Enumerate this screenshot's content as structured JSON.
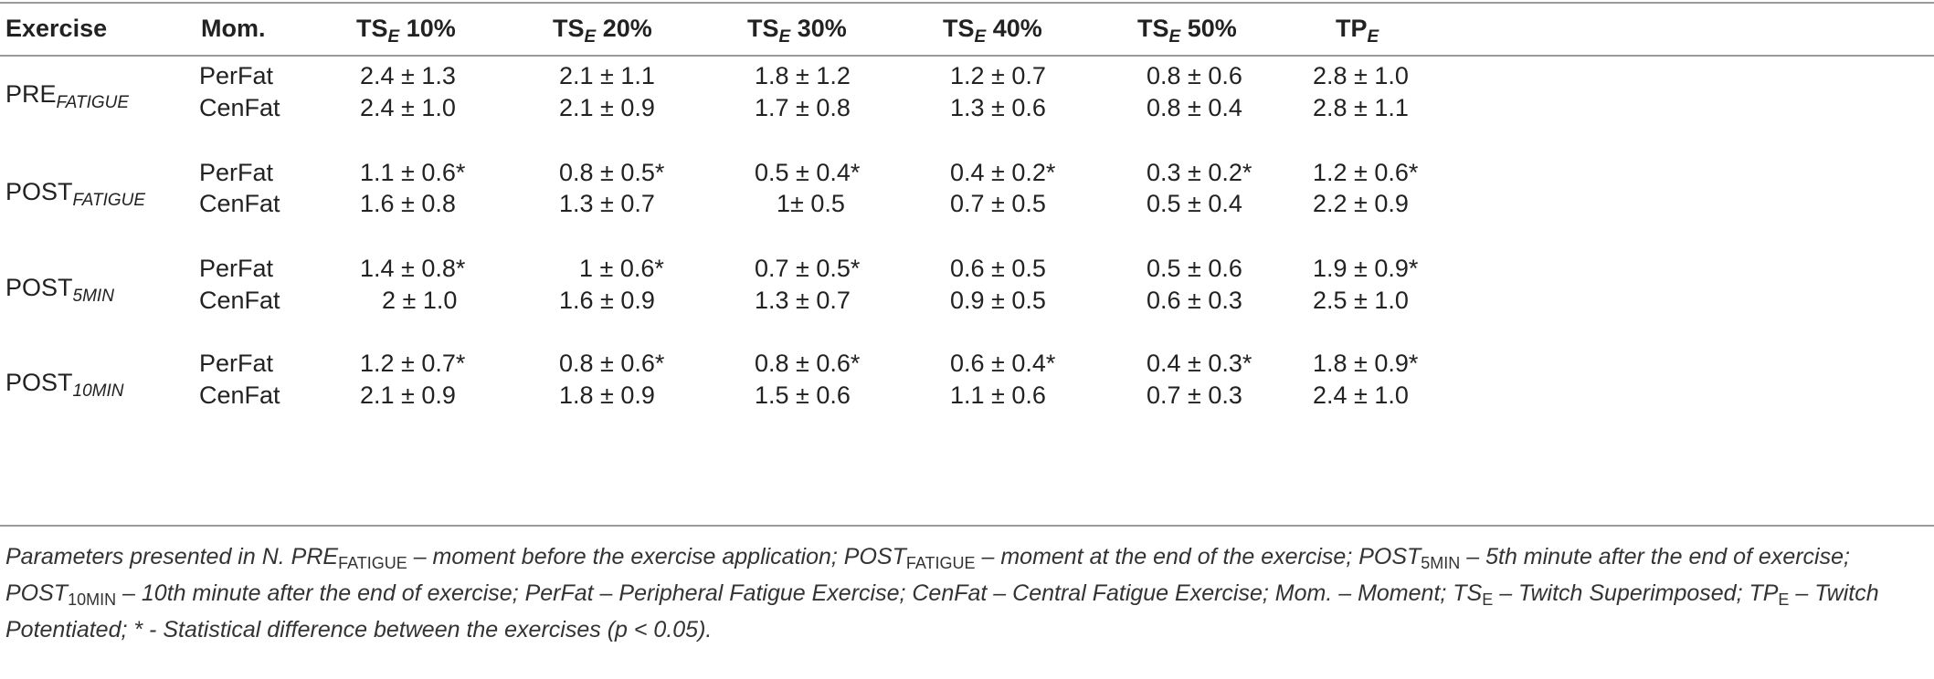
{
  "headers": {
    "exercise": "Exercise",
    "moment": "Mom.",
    "ts_prefix": "TS",
    "ts_sub": "E",
    "ts10": "10%",
    "ts20": "20%",
    "ts30": "30%",
    "ts40": "40%",
    "ts50": "50%",
    "tp_prefix": "TP",
    "tp_sub": "E"
  },
  "groups": [
    {
      "name": "PRE",
      "sub": "FATIGUE",
      "rows": [
        {
          "mom": "PerFat",
          "v": [
            "2.4 ± 1.3",
            "2.1 ± 1.1",
            "1.8 ± 1.2",
            "1.2 ± 0.7",
            "0.8 ± 0.6",
            "2.8 ± 1.0"
          ]
        },
        {
          "mom": "CenFat",
          "v": [
            "2.4 ± 1.0",
            "2.1 ± 0.9",
            "1.7 ± 0.8",
            "1.3 ± 0.6",
            "0.8 ± 0.4",
            "2.8 ± 1.1"
          ]
        }
      ]
    },
    {
      "name": "POST",
      "sub": "FATIGUE",
      "rows": [
        {
          "mom": "PerFat",
          "v": [
            "1.1 ± 0.6*",
            "0.8 ± 0.5*",
            "0.5 ± 0.4*",
            "0.4 ± 0.2*",
            "0.3 ± 0.2*",
            "1.2 ± 0.6*"
          ]
        },
        {
          "mom": "CenFat",
          "v": [
            "1.6 ± 0.8",
            "1.3 ± 0.7",
            "1± 0.5",
            "0.7 ± 0.5",
            "0.5 ± 0.4",
            "2.2 ± 0.9"
          ]
        }
      ]
    },
    {
      "name": "POST",
      "sub": "5MIN",
      "rows": [
        {
          "mom": "PerFat",
          "v": [
            "1.4 ± 0.8*",
            "1 ± 0.6*",
            "0.7 ± 0.5*",
            "0.6 ± 0.5",
            "0.5 ± 0.6",
            "1.9 ± 0.9*"
          ]
        },
        {
          "mom": "CenFat",
          "v": [
            "2 ± 1.0",
            "1.6 ± 0.9",
            "1.3 ± 0.7",
            "0.9 ± 0.5",
            "0.6 ± 0.3",
            "2.5 ± 1.0"
          ]
        }
      ]
    },
    {
      "name": "POST",
      "sub": "10MIN",
      "rows": [
        {
          "mom": "PerFat",
          "v": [
            "1.2 ± 0.7*",
            "0.8 ± 0.6*",
            "0.8 ± 0.6*",
            "0.6 ± 0.4*",
            "0.4 ± 0.3*",
            "1.8 ± 0.9*"
          ]
        },
        {
          "mom": "CenFat",
          "v": [
            "2.1 ± 0.9",
            "1.8 ± 0.9",
            "1.5 ± 0.6",
            "1.1 ± 0.6",
            "0.7 ± 0.3",
            "2.4 ± 1.0"
          ]
        }
      ]
    }
  ],
  "caption": {
    "p1": "Parameters presented in N. PRE",
    "s1": "FATIGUE",
    "p2": " – moment before the exercise application; POST",
    "s2": "FATIGUE",
    "p3": " – moment at the end of the exercise; POST",
    "s3": "5MIN",
    "p4": " – 5th minute after the end of exercise; POST",
    "s4": "10MIN",
    "p5": " – 10th minute after the end of exercise; PerFat – Peripheral Fatigue Exercise; CenFat – Central Fatigue Exercise; Mom. – Moment; TS",
    "s5": "E",
    "p6": " – Twitch Superimposed; TP",
    "s6": "E",
    "p7": " – Twitch Potentiated; * - Statistical difference between the exercises (p < 0.05)."
  }
}
